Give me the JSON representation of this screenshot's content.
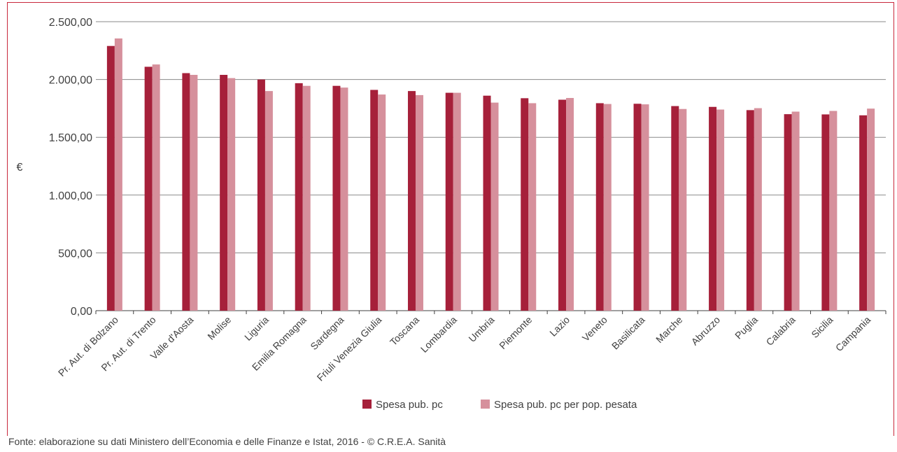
{
  "colors": {
    "series1": "#a6203a",
    "series2": "#d6909c",
    "frame": "#c8283c",
    "axis": "#404040",
    "grid": "#8a8a8a"
  },
  "chart_data": {
    "type": "bar",
    "ylabel": "€",
    "ylim": [
      0,
      2500
    ],
    "yticks": [
      0,
      500,
      1000,
      1500,
      2000,
      2500
    ],
    "ytick_labels": [
      "0,00",
      "500,00",
      "1.000,00",
      "1.500,00",
      "2.000,00",
      "2.500,00"
    ],
    "grid": true,
    "legend_position": "bottom",
    "categories": [
      "Pr. Aut. di Bolzano",
      "Pr. Aut. di Trento",
      "Valle d'Aosta",
      "Molise",
      "Liguria",
      "Emilia Romagna",
      "Sardegna",
      "Friuli Venezia Giulia",
      "Toscana",
      "Lombardia",
      "Umbria",
      "Piemonte",
      "Lazio",
      "Veneto",
      "Basilicata",
      "Marche",
      "Abruzzo",
      "Puglia",
      "Calabria",
      "Sicilia",
      "Campania"
    ],
    "series": [
      {
        "name": "Spesa pub. pc",
        "values": [
          2290,
          2110,
          2055,
          2040,
          2000,
          1968,
          1945,
          1910,
          1900,
          1885,
          1860,
          1838,
          1825,
          1795,
          1790,
          1770,
          1763,
          1735,
          1700,
          1698,
          1690
        ]
      },
      {
        "name": "Spesa pub. pc per pop. pesata",
        "values": [
          2355,
          2130,
          2040,
          2012,
          1900,
          1945,
          1930,
          1870,
          1865,
          1885,
          1800,
          1795,
          1840,
          1788,
          1785,
          1745,
          1740,
          1752,
          1722,
          1728,
          1748
        ]
      }
    ]
  },
  "source_note": "Fonte: elaborazione su dati Ministero dell’Economia e delle Finanze e Istat, 2016 - © C.R.E.A. Sanità"
}
